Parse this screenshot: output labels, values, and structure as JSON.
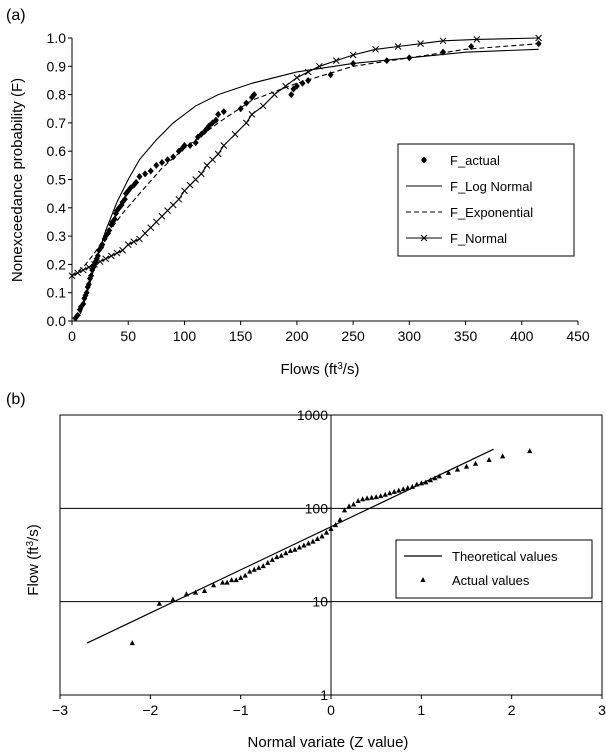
{
  "chart_data": [
    {
      "type": "line",
      "panel_label": "(a)",
      "xlabel": "Flows (ft³/s)",
      "xlabel_main": "Flows (ft",
      "xlabel_sup": "3",
      "xlabel_end": "/s)",
      "ylabel": "Nonexceedance probability (F)",
      "xlim": [
        0,
        450
      ],
      "ylim": [
        0,
        1.0
      ],
      "xticks": [
        "0",
        "50",
        "100",
        "150",
        "200",
        "250",
        "300",
        "350",
        "400",
        "450"
      ],
      "yticks": [
        "0.0",
        "0.1",
        "0.2",
        "0.3",
        "0.4",
        "0.5",
        "0.6",
        "0.7",
        "0.8",
        "0.9",
        "1.0"
      ],
      "legend_position": "right",
      "series": [
        {
          "name": "F_actual",
          "style": "diamond-markers",
          "x": [
            3,
            5,
            7,
            8,
            10,
            11,
            12,
            13,
            14,
            15,
            16,
            17,
            18,
            19,
            20,
            21,
            22,
            23,
            24,
            26,
            27,
            29,
            30,
            32,
            33,
            35,
            36,
            38,
            39,
            40,
            42,
            44,
            45,
            47,
            48,
            50,
            52,
            55,
            57,
            60,
            65,
            70,
            75,
            80,
            85,
            90,
            95,
            98,
            100,
            105,
            110,
            112,
            115,
            118,
            120,
            122,
            125,
            128,
            130,
            135,
            150,
            155,
            160,
            162,
            195,
            197,
            200,
            205,
            210,
            230,
            250,
            280,
            300,
            330,
            355,
            415
          ],
          "y": [
            0.01,
            0.02,
            0.04,
            0.05,
            0.06,
            0.08,
            0.09,
            0.1,
            0.12,
            0.13,
            0.15,
            0.16,
            0.18,
            0.19,
            0.2,
            0.21,
            0.22,
            0.23,
            0.25,
            0.26,
            0.27,
            0.29,
            0.3,
            0.31,
            0.32,
            0.34,
            0.35,
            0.36,
            0.38,
            0.39,
            0.4,
            0.41,
            0.42,
            0.43,
            0.45,
            0.46,
            0.47,
            0.48,
            0.49,
            0.51,
            0.52,
            0.53,
            0.55,
            0.56,
            0.57,
            0.58,
            0.6,
            0.61,
            0.62,
            0.62,
            0.63,
            0.65,
            0.66,
            0.67,
            0.68,
            0.69,
            0.7,
            0.71,
            0.73,
            0.74,
            0.75,
            0.77,
            0.79,
            0.8,
            0.8,
            0.82,
            0.83,
            0.84,
            0.85,
            0.87,
            0.91,
            0.92,
            0.93,
            0.95,
            0.97,
            0.98
          ]
        },
        {
          "name": "F_Log Normal",
          "style": "solid",
          "x": [
            3,
            8,
            15,
            22,
            30,
            40,
            50,
            60,
            75,
            90,
            110,
            130,
            160,
            200,
            250,
            300,
            350,
            415
          ],
          "y": [
            0.0,
            0.03,
            0.12,
            0.22,
            0.32,
            0.42,
            0.5,
            0.57,
            0.64,
            0.7,
            0.76,
            0.8,
            0.84,
            0.88,
            0.91,
            0.93,
            0.95,
            0.96
          ]
        },
        {
          "name": "F_Exponential",
          "style": "dashed",
          "x": [
            0,
            10,
            20,
            30,
            45,
            60,
            80,
            100,
            130,
            160,
            200,
            250,
            300,
            350,
            415
          ],
          "y": [
            0.16,
            0.19,
            0.24,
            0.3,
            0.38,
            0.45,
            0.54,
            0.61,
            0.7,
            0.78,
            0.84,
            0.9,
            0.93,
            0.96,
            0.98
          ],
          "y_correction_note": ""
        },
        {
          "name": "F_Normal",
          "style": "x-markers",
          "x": [
            0,
            5,
            10,
            15,
            20,
            25,
            30,
            35,
            40,
            45,
            50,
            55,
            60,
            65,
            70,
            75,
            80,
            85,
            90,
            95,
            100,
            105,
            110,
            115,
            120,
            125,
            130,
            135,
            145,
            155,
            160,
            170,
            180,
            190,
            200,
            210,
            220,
            235,
            250,
            270,
            290,
            310,
            330,
            360,
            415
          ],
          "y": [
            0.16,
            0.17,
            0.18,
            0.19,
            0.2,
            0.21,
            0.22,
            0.23,
            0.24,
            0.25,
            0.27,
            0.28,
            0.29,
            0.31,
            0.33,
            0.35,
            0.37,
            0.39,
            0.41,
            0.43,
            0.46,
            0.48,
            0.5,
            0.52,
            0.55,
            0.57,
            0.59,
            0.62,
            0.66,
            0.7,
            0.73,
            0.76,
            0.8,
            0.83,
            0.86,
            0.88,
            0.9,
            0.92,
            0.94,
            0.96,
            0.97,
            0.98,
            0.99,
            0.995,
            1.0
          ]
        }
      ]
    },
    {
      "type": "scatter",
      "panel_label": "(b)",
      "xlabel": "Normal variate (Z value)",
      "ylabel": "Flow (ft³/s)",
      "ylabel_main": "Flow (ft",
      "ylabel_sup": "3",
      "ylabel_end": "/s)",
      "yscale": "log",
      "xlim": [
        -3,
        3
      ],
      "ylim": [
        1,
        1000
      ],
      "xticks": [
        "−3",
        "−2",
        "−1",
        "0",
        "1",
        "2",
        "3"
      ],
      "yticks": [
        "1",
        "10",
        "100",
        "1000"
      ],
      "legend_position": "right",
      "series": [
        {
          "name": "Theoretical values",
          "style": "solid",
          "x": [
            -2.7,
            1.8
          ],
          "y": [
            3.6,
            430
          ]
        },
        {
          "name": "Actual values",
          "style": "triangle-markers",
          "x": [
            -2.2,
            -1.9,
            -1.75,
            -1.6,
            -1.5,
            -1.4,
            -1.3,
            -1.2,
            -1.15,
            -1.1,
            -1.05,
            -1.0,
            -0.95,
            -0.9,
            -0.85,
            -0.8,
            -0.75,
            -0.7,
            -0.65,
            -0.6,
            -0.55,
            -0.5,
            -0.45,
            -0.4,
            -0.35,
            -0.3,
            -0.25,
            -0.2,
            -0.15,
            -0.1,
            -0.05,
            0.0,
            0.05,
            0.1,
            0.15,
            0.2,
            0.25,
            0.3,
            0.35,
            0.4,
            0.45,
            0.5,
            0.55,
            0.6,
            0.65,
            0.7,
            0.75,
            0.8,
            0.85,
            0.9,
            0.95,
            1.0,
            1.05,
            1.1,
            1.15,
            1.2,
            1.3,
            1.4,
            1.5,
            1.6,
            1.75,
            1.9,
            2.2
          ],
          "y": [
            3.6,
            9.5,
            10.5,
            12,
            12.5,
            13,
            15,
            16,
            16,
            17,
            17,
            18,
            19,
            21,
            22,
            23,
            24,
            26,
            28,
            30,
            31,
            33,
            35,
            36,
            38,
            40,
            42,
            44,
            47,
            50,
            55,
            60,
            66,
            75,
            95,
            105,
            110,
            120,
            125,
            128,
            130,
            132,
            135,
            140,
            145,
            150,
            155,
            160,
            165,
            170,
            180,
            185,
            190,
            200,
            210,
            220,
            240,
            260,
            280,
            300,
            330,
            360,
            410
          ]
        }
      ]
    }
  ]
}
